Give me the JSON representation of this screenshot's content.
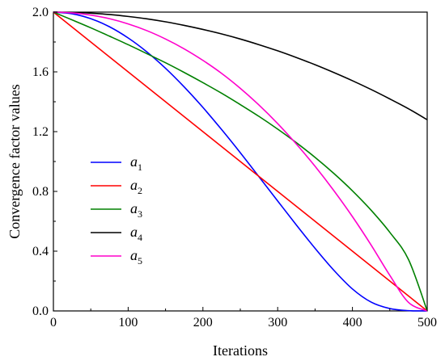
{
  "chart_data": {
    "type": "line",
    "xlabel": "Iterations",
    "ylabel": "Convergence factor values",
    "xlim": [
      0,
      500
    ],
    "ylim": [
      0.0,
      2.0
    ],
    "xticks": [
      0,
      100,
      200,
      300,
      400,
      500
    ],
    "yticks": [
      0.0,
      0.4,
      0.8,
      1.2,
      1.6,
      2.0
    ],
    "xtick_labels": [
      "0",
      "100",
      "200",
      "300",
      "400",
      "500"
    ],
    "ytick_labels": [
      "0.0",
      "0.4",
      "0.8",
      "1.2",
      "1.6",
      "2.0"
    ],
    "grid": false,
    "legend_position": "center-left",
    "x": [
      0,
      25,
      50,
      75,
      100,
      125,
      150,
      175,
      200,
      225,
      250,
      275,
      300,
      325,
      350,
      375,
      400,
      425,
      450,
      475,
      500
    ],
    "series": [
      {
        "name": "a",
        "sub": "1",
        "color": "#0000ff",
        "values": [
          2.0,
          1.989,
          1.956,
          1.902,
          1.827,
          1.734,
          1.624,
          1.499,
          1.362,
          1.214,
          1.059,
          0.898,
          0.736,
          0.575,
          0.419,
          0.273,
          0.147,
          0.059,
          0.016,
          0.002,
          0.0
        ]
      },
      {
        "name": "a",
        "sub": "2",
        "color": "#ff0000",
        "values": [
          2.0,
          1.9,
          1.8,
          1.7,
          1.6,
          1.5,
          1.4,
          1.3,
          1.2,
          1.1,
          1.0,
          0.9,
          0.8,
          0.7,
          0.6,
          0.5,
          0.4,
          0.3,
          0.2,
          0.1,
          0.0
        ]
      },
      {
        "name": "a",
        "sub": "3",
        "color": "#008000",
        "values": [
          2.0,
          1.948,
          1.895,
          1.839,
          1.782,
          1.722,
          1.661,
          1.596,
          1.528,
          1.457,
          1.381,
          1.302,
          1.217,
          1.126,
          1.028,
          0.921,
          0.804,
          0.674,
          0.526,
          0.344,
          0.0
        ]
      },
      {
        "name": "a",
        "sub": "4",
        "color": "#000000",
        "values": [
          2.0,
          1.998,
          1.993,
          1.984,
          1.971,
          1.955,
          1.935,
          1.911,
          1.884,
          1.854,
          1.82,
          1.782,
          1.741,
          1.696,
          1.648,
          1.596,
          1.541,
          1.482,
          1.419,
          1.353,
          1.28
        ]
      },
      {
        "name": "a",
        "sub": "5",
        "color": "#ff00cc",
        "values": [
          2.0,
          1.995,
          1.98,
          1.956,
          1.921,
          1.876,
          1.82,
          1.754,
          1.677,
          1.59,
          1.49,
          1.378,
          1.254,
          1.117,
          0.968,
          0.806,
          0.631,
          0.441,
          0.238,
          0.057,
          0.0
        ]
      }
    ]
  }
}
